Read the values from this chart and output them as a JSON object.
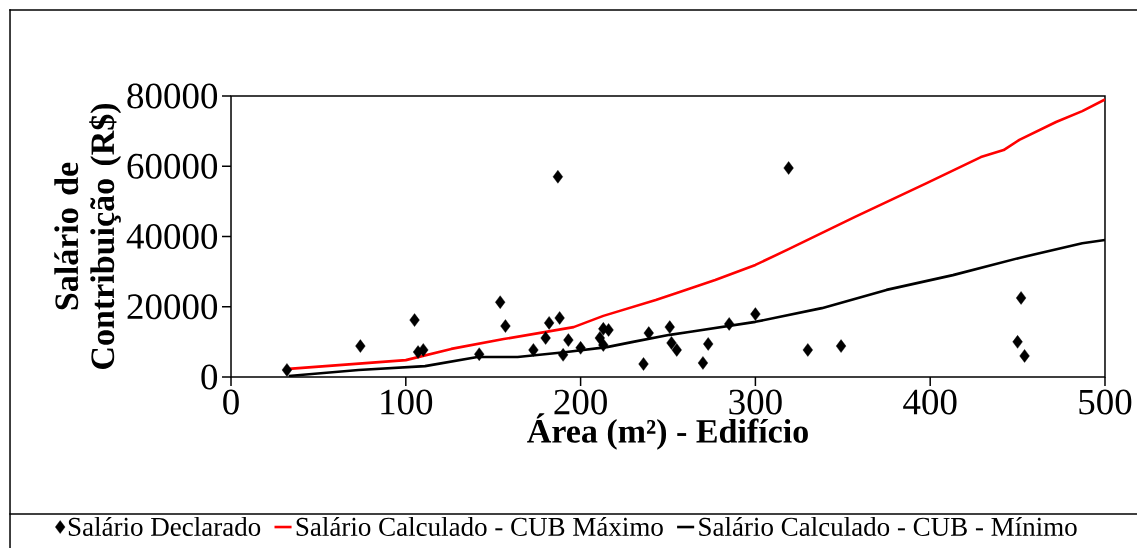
{
  "chart_data": {
    "type": "scatter",
    "xlabel": "Área (m²) - Edifício",
    "ylabel": "Salário de Contribuição (R$)",
    "xlim": [
      0,
      500
    ],
    "ylim": [
      0,
      80000
    ],
    "xticks": [
      0,
      100,
      200,
      300,
      400,
      500
    ],
    "yticks": [
      0,
      20000,
      40000,
      60000,
      80000
    ],
    "grid": false,
    "legend": "bottom",
    "series": [
      {
        "name": "Salário Declarado",
        "marker": "diamond",
        "color": "#000000",
        "x": [
          32,
          74,
          105,
          107,
          110,
          142,
          154,
          157,
          173,
          180,
          182,
          188,
          187,
          190,
          193,
          200,
          211,
          213,
          216,
          213,
          236,
          239,
          251,
          252,
          255,
          270,
          273,
          285,
          300,
          319,
          330,
          349,
          450,
          452,
          454
        ],
        "values": [
          2000,
          8800,
          16200,
          7100,
          7700,
          6500,
          21300,
          14500,
          7700,
          11100,
          15400,
          16800,
          57000,
          6300,
          10500,
          8300,
          11100,
          13700,
          13400,
          9100,
          3700,
          12500,
          14200,
          9700,
          7700,
          4000,
          9400,
          15100,
          17900,
          59500,
          7700,
          8800,
          10000,
          22500,
          6000
        ]
      },
      {
        "name": "Salário Calculado - CUB Máximo",
        "type": "line",
        "marker": "none",
        "line_style": "solid",
        "color": "#ff0000",
        "x": [
          33,
          100,
          126,
          156,
          196,
          213,
          243,
          255,
          277,
          300,
          319,
          357,
          398,
          429,
          442,
          451,
          472,
          487,
          500
        ],
        "values": [
          2300,
          4800,
          8000,
          10800,
          14200,
          17400,
          21900,
          23900,
          27600,
          31900,
          36400,
          45600,
          55200,
          62600,
          64600,
          67500,
          72600,
          75700,
          79000
        ]
      },
      {
        "name": "Salário Calculado - CUB - Mínimo",
        "type": "line",
        "marker": "none",
        "line_style": "solid",
        "color": "#000000",
        "x": [
          33,
          73,
          111,
          141,
          164,
          192,
          215,
          230,
          251,
          262,
          300,
          338,
          375,
          413,
          451,
          487,
          500
        ],
        "values": [
          300,
          2000,
          3100,
          5700,
          5700,
          7100,
          8500,
          10000,
          12000,
          12800,
          15700,
          19600,
          24800,
          29000,
          33900,
          38100,
          39000
        ]
      }
    ]
  }
}
